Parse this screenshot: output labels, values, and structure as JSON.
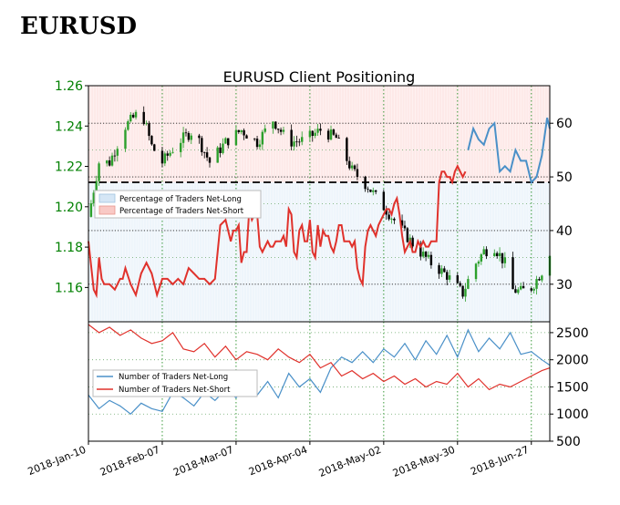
{
  "header": {
    "title": "EURUSD"
  },
  "chart_data": [
    {
      "type": "line",
      "title": "EURUSD Client Positioning",
      "x_ticks": [
        "2018-Jan-10",
        "2018-Feb-07",
        "2018-Mar-07",
        "2018-Apr-04",
        "2018-May-02",
        "2018-May-30",
        "2018-Jun-27"
      ],
      "price_axis": {
        "ticks": [
          "1.16",
          "1.18",
          "1.20",
          "1.22",
          "1.24",
          "1.26"
        ],
        "ylim": [
          1.143,
          1.26
        ],
        "color": "#008000"
      },
      "pct_axis": {
        "ticks": [
          "30",
          "40",
          "50",
          "60"
        ],
        "ylim": [
          23,
          67
        ]
      },
      "reference_line": 50,
      "legend": {
        "position": "left",
        "entries": [
          "Percentage of Traders Net-Long",
          "Percentage of Traders Net-Short"
        ]
      },
      "colors": {
        "net_long": "#4a90c8",
        "net_short": "#e0322c",
        "bull": "#2ca02c",
        "bear": "#000000"
      },
      "series": [
        {
          "name": "Percentage of Traders Net-Long",
          "days": [
            144,
            146,
            148,
            150,
            152,
            154,
            156,
            158,
            160,
            162,
            164,
            166,
            168,
            170,
            172,
            174,
            175
          ],
          "values": [
            55,
            59,
            57,
            56,
            59,
            60,
            51,
            52,
            51,
            55,
            53,
            53,
            49,
            50,
            54,
            61,
            59
          ]
        },
        {
          "name": "Percentage of Traders Net-Short",
          "days": [
            0,
            1,
            2,
            3,
            4,
            5,
            6,
            7,
            8,
            9,
            10,
            11,
            12,
            13,
            14,
            15,
            16,
            17,
            18,
            19,
            20,
            21,
            22,
            23,
            24,
            25,
            26,
            27,
            28,
            29,
            30,
            31,
            32,
            33,
            34,
            35,
            36,
            37,
            38,
            39,
            40,
            41,
            42,
            43,
            44,
            45,
            46,
            47,
            48,
            49,
            50,
            51,
            52,
            53,
            54,
            55,
            56,
            57,
            58,
            59,
            60,
            61,
            62,
            63,
            64,
            65,
            66,
            67,
            68,
            69,
            70,
            71,
            72,
            73,
            74,
            75,
            76,
            77,
            78,
            79,
            80,
            81,
            82,
            83,
            84,
            85,
            86,
            87,
            88,
            89,
            90,
            91,
            92,
            93,
            94,
            95,
            96,
            97,
            98,
            99,
            100,
            101,
            102,
            103,
            104,
            105,
            106,
            107,
            108,
            109,
            110,
            111,
            112,
            113,
            114,
            115,
            116,
            117,
            118,
            119,
            120,
            121,
            122,
            123,
            124,
            125,
            126,
            127,
            128,
            129,
            130,
            131,
            132,
            133,
            134,
            135,
            136,
            137,
            138,
            139,
            140,
            141,
            142,
            143
          ],
          "values": [
            38,
            33,
            29,
            28,
            35,
            31,
            31,
            30,
            30,
            30,
            29,
            32,
            31,
            31,
            33,
            32,
            30,
            28,
            28,
            32,
            33,
            34,
            33,
            32,
            28,
            30,
            31,
            30,
            31,
            31,
            30,
            43,
            42,
            41,
            42,
            42,
            40,
            40,
            41,
            34,
            36,
            36,
            44,
            42,
            43,
            43,
            37,
            36,
            37,
            38,
            37,
            37,
            38,
            38,
            38,
            39,
            37,
            44,
            43,
            36,
            35,
            40,
            41,
            38,
            38,
            42,
            36,
            35,
            41,
            37,
            40,
            39,
            39,
            37,
            36,
            38,
            41,
            41,
            38,
            38,
            38,
            37,
            38,
            33,
            31,
            30,
            37,
            40,
            41,
            40,
            39,
            41,
            42,
            43,
            44,
            44,
            43,
            45,
            46,
            43,
            39,
            36,
            37,
            38,
            36,
            36,
            38,
            37,
            38,
            37,
            37,
            38,
            38,
            38,
            49,
            51,
            51,
            50,
            50,
            49,
            51,
            52,
            51,
            50,
            51,
            50,
            52,
            50,
            49,
            48,
            49,
            50,
            49,
            50,
            50,
            49,
            50,
            50,
            49,
            49,
            50,
            49,
            48,
            50
          ]
        },
        {
          "name": "Percentage of Traders Net-Short",
          "days": [
            0,
            2,
            3,
            4,
            5,
            6,
            8,
            10,
            12,
            13,
            14,
            16,
            18,
            20,
            22,
            24,
            26,
            28,
            30,
            32,
            34,
            36,
            38,
            40,
            42,
            44,
            46,
            48,
            50,
            52,
            53,
            54,
            55,
            56,
            57,
            58,
            59,
            60,
            61,
            62,
            63,
            64,
            65,
            66,
            67,
            68,
            69,
            70,
            71,
            72,
            73,
            74,
            75,
            76,
            77,
            78,
            79,
            80,
            81,
            82,
            83,
            84,
            85,
            86,
            87,
            88,
            89,
            90,
            91,
            92,
            93,
            94,
            95,
            96,
            97,
            98,
            99,
            100,
            101,
            102,
            103,
            104,
            105,
            106,
            107,
            108,
            109,
            110,
            111,
            112,
            113,
            114,
            115,
            116,
            117,
            118,
            119,
            120,
            121,
            122,
            123,
            124,
            125,
            126,
            127,
            128,
            129,
            130,
            131,
            132,
            133,
            134,
            135,
            136,
            137,
            138,
            139,
            140,
            141,
            142,
            143
          ],
          "values": [
            38,
            29,
            28,
            35,
            31,
            30,
            30,
            29,
            31,
            31,
            33,
            30,
            28,
            32,
            34,
            32,
            28,
            31,
            31,
            30,
            31,
            30,
            33,
            32,
            31,
            31,
            30,
            31,
            41,
            42,
            40,
            38,
            40,
            40,
            41,
            34,
            36,
            36,
            44,
            42,
            43,
            43,
            37,
            36,
            37,
            38,
            37,
            37,
            38,
            38,
            38,
            39,
            37,
            44,
            43,
            36,
            35,
            40,
            41,
            38,
            38,
            42,
            36,
            35,
            41,
            37,
            40,
            39,
            39,
            37,
            36,
            38,
            41,
            41,
            38,
            38,
            38,
            37,
            38,
            33,
            31,
            30,
            37,
            40,
            41,
            40,
            39,
            41,
            42,
            43,
            44,
            44,
            43,
            45,
            46,
            43,
            39,
            36,
            37,
            38,
            36,
            36,
            38,
            37,
            38,
            37,
            37,
            38,
            38,
            38,
            49,
            51,
            51,
            50,
            50,
            49,
            51,
            52,
            51,
            50,
            51
          ]
        }
      ]
    },
    {
      "type": "line",
      "y_ticks": [
        "500",
        "1000",
        "1500",
        "2000",
        "2500"
      ],
      "ylim": [
        500,
        2700
      ],
      "legend": {
        "position": "left",
        "entries": [
          "Number of Traders Net-Long",
          "Number of Traders Net-Short"
        ]
      },
      "series": [
        {
          "name": "Number of Traders Net-Long",
          "days": [
            0,
            4,
            8,
            12,
            16,
            20,
            24,
            28,
            32,
            36,
            40,
            44,
            48,
            52,
            56,
            60,
            64,
            68,
            72,
            76,
            80,
            84,
            88,
            92,
            96,
            100,
            104,
            108,
            112,
            116,
            120,
            124,
            128,
            132,
            136,
            140,
            144,
            148,
            152,
            156,
            160,
            164,
            168,
            172,
            175
          ],
          "values": [
            1350,
            1100,
            1250,
            1150,
            1000,
            1200,
            1100,
            1050,
            1400,
            1300,
            1150,
            1400,
            1250,
            1450,
            1300,
            1550,
            1350,
            1600,
            1300,
            1750,
            1500,
            1650,
            1400,
            1850,
            2050,
            1950,
            2150,
            1950,
            2200,
            2050,
            2300,
            2000,
            2350,
            2100,
            2450,
            2050,
            2550,
            2150,
            2400,
            2200,
            2500,
            2100,
            2150,
            2000,
            1900
          ]
        },
        {
          "name": "Number of Traders Net-Short",
          "days": [
            0,
            4,
            8,
            12,
            16,
            20,
            24,
            28,
            32,
            36,
            40,
            44,
            48,
            52,
            56,
            60,
            64,
            68,
            72,
            76,
            80,
            84,
            88,
            92,
            96,
            100,
            104,
            108,
            112,
            116,
            120,
            124,
            128,
            132,
            136,
            140,
            144,
            148,
            152,
            156,
            160,
            164,
            168,
            172,
            175
          ],
          "values": [
            2650,
            2500,
            2600,
            2450,
            2550,
            2400,
            2300,
            2350,
            2500,
            2200,
            2150,
            2300,
            2050,
            2250,
            2000,
            2150,
            2100,
            2000,
            2200,
            2050,
            1950,
            2100,
            1850,
            1950,
            1700,
            1800,
            1650,
            1750,
            1600,
            1700,
            1550,
            1650,
            1500,
            1600,
            1550,
            1750,
            1500,
            1650,
            1450,
            1550,
            1500,
            1600,
            1700,
            1800,
            1850
          ]
        }
      ]
    }
  ]
}
